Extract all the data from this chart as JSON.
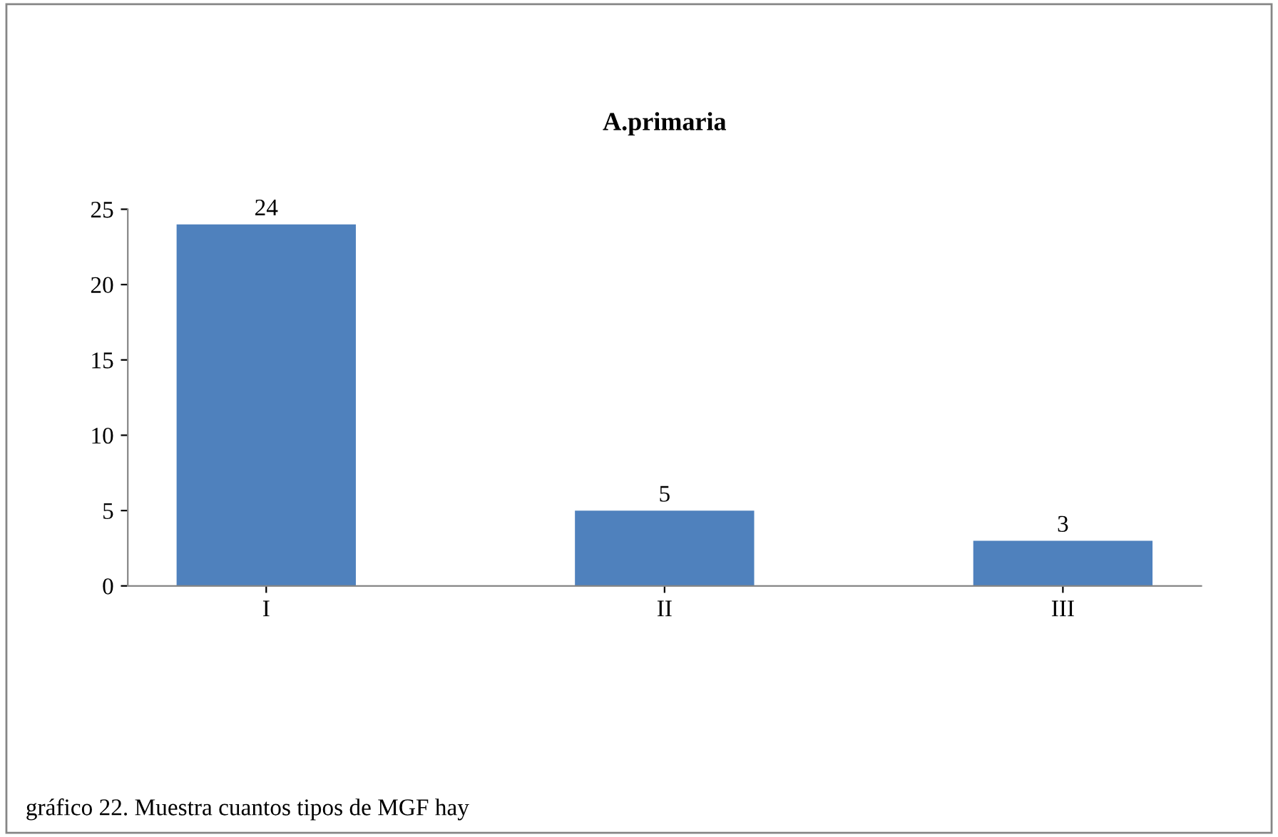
{
  "chart_data": {
    "type": "bar",
    "title": "A.primaria",
    "categories": [
      "I",
      "II",
      "III"
    ],
    "values": [
      24,
      5,
      3
    ],
    "color": "#4f81bd",
    "ylim": [
      0,
      25
    ],
    "yticks": [
      0,
      5,
      10,
      15,
      20,
      25
    ],
    "grid": false,
    "data_labels": true,
    "annotations": [
      "gráfico 22. Muestra cuantos tipos de MGF hay"
    ]
  }
}
